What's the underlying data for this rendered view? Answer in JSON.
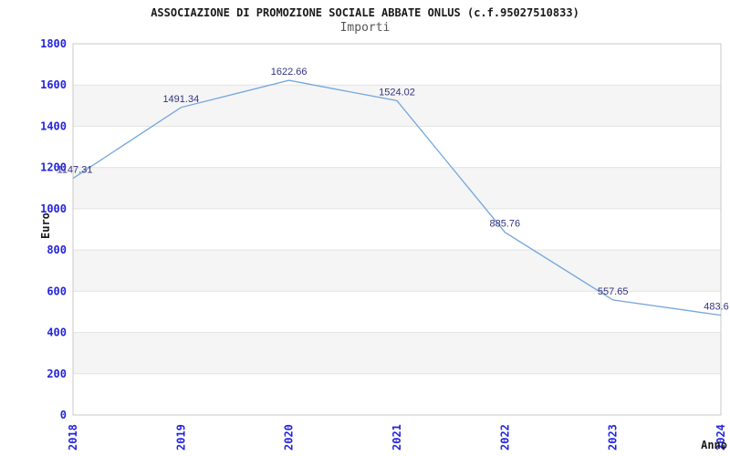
{
  "chart_data": {
    "type": "line",
    "title": "ASSOCIAZIONE DI PROMOZIONE SOCIALE ABBATE ONLUS (c.f.95027510833)",
    "subtitle": "Importi",
    "xlabel": "Anno",
    "ylabel": "Euro",
    "categories": [
      "2018",
      "2019",
      "2020",
      "2021",
      "2022",
      "2023",
      "2024"
    ],
    "series": [
      {
        "name": "Importi",
        "values": [
          1147.31,
          1491.34,
          1622.66,
          1524.02,
          885.76,
          557.65,
          483.6
        ]
      }
    ],
    "value_labels": [
      "1147.31",
      "1491.34",
      "1622.66",
      "1524.02",
      "885.76",
      "557.65",
      "483.6"
    ],
    "ylim": [
      0,
      1800
    ],
    "ytick_step": 200,
    "yticks": [
      0,
      200,
      400,
      600,
      800,
      1000,
      1200,
      1400,
      1600,
      1800
    ],
    "grid": true,
    "legend_position": "none",
    "colors": {
      "line": "#74a7dc",
      "tick_label": "#2424dd",
      "value_label": "#333380",
      "band": "#f5f5f5",
      "gridline": "#e4e4e4",
      "plot_border": "#c9c9c9",
      "axis_title": "#1a1a1a"
    }
  }
}
